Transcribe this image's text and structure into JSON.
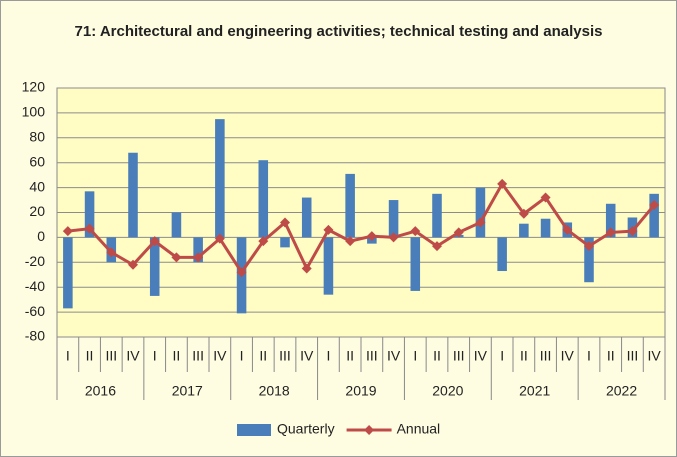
{
  "chart_data": {
    "type": "bar",
    "title": "71: Architectural and engineering activities; technical testing and analysis",
    "categories": [
      "I",
      "II",
      "III",
      "IV",
      "I",
      "II",
      "III",
      "IV",
      "I",
      "II",
      "III",
      "IV",
      "I",
      "II",
      "III",
      "IV",
      "I",
      "II",
      "III",
      "IV",
      "I",
      "II",
      "III",
      "IV",
      "I",
      "II",
      "III",
      "IV"
    ],
    "years": [
      "2016",
      "2017",
      "2018",
      "2019",
      "2020",
      "2021",
      "2022"
    ],
    "series": [
      {
        "name": "Quarterly",
        "type": "bar",
        "color": "#4a7ebb",
        "values": [
          -57,
          37,
          -20,
          68,
          -47,
          20,
          -20,
          95,
          -61,
          62,
          -8,
          32,
          -46,
          51,
          -5,
          30,
          -43,
          35,
          2,
          40,
          -27,
          11,
          15,
          12,
          -36,
          27,
          16,
          35
        ]
      },
      {
        "name": "Annual",
        "type": "line",
        "color": "#be4b48",
        "values": [
          5,
          7,
          -12,
          -22,
          -3,
          -16,
          -16,
          -1,
          -28,
          -3,
          12,
          -25,
          6,
          -3,
          1,
          0,
          5,
          -7,
          4,
          12,
          43,
          19,
          32,
          6,
          -7,
          4,
          5,
          26
        ]
      }
    ],
    "ylim": [
      -80,
      120
    ],
    "yticks": [
      -80,
      -60,
      -40,
      -20,
      0,
      20,
      40,
      60,
      80,
      100,
      120
    ],
    "grid": true,
    "legend": "bottom"
  }
}
